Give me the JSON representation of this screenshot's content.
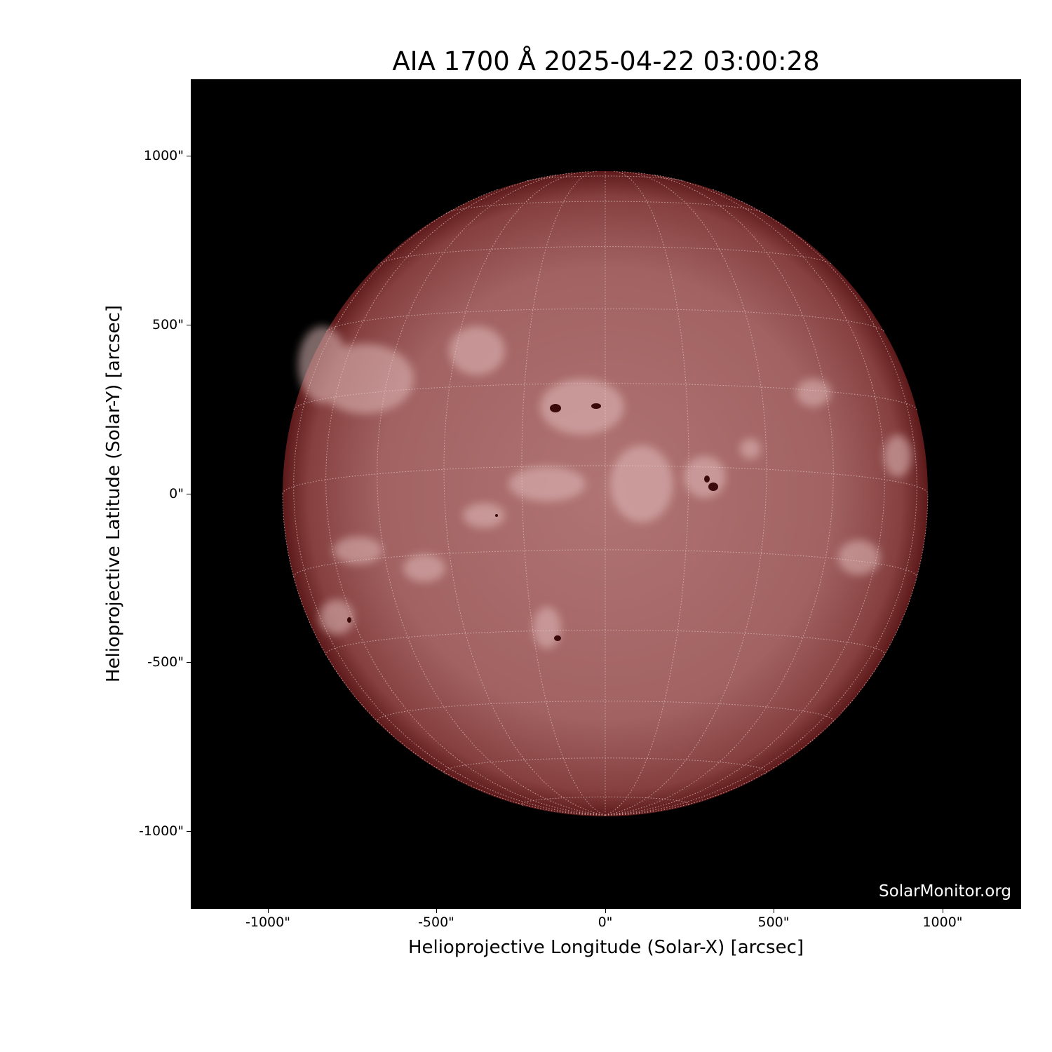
{
  "title": "AIA 1700 Å 2025-04-22 03:00:28",
  "xlabel": "Helioprojective Longitude (Solar-X) [arcsec]",
  "ylabel": "Helioprojective Latitude (Solar-Y) [arcsec]",
  "x_ticks": [
    "-1000\"",
    "-500\"",
    "0\"",
    "500\"",
    "1000\""
  ],
  "y_ticks": [
    "1000\"",
    "500\"",
    "0\"",
    "-500\"",
    "-1000\""
  ],
  "watermark": "SolarMonitor.org",
  "colors": {
    "disk_center": "#b07474",
    "disk_limb": "#5e1a1a",
    "background": "#000000",
    "plage": "#e8c8c8",
    "sunspot": "#3a0a0a"
  }
}
